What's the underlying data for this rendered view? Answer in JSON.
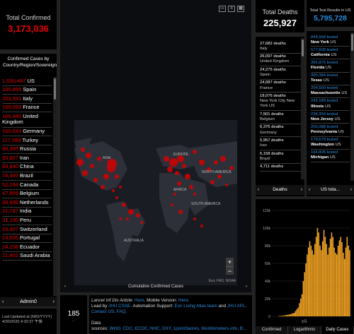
{
  "total_confirmed": {
    "label": "Total Confirmed",
    "value": "3,173,036"
  },
  "confirmed_list": {
    "header": "Confirmed Cases by Country/Region/Sovereignty",
    "items": [
      {
        "count": "1,030,487",
        "name": "US"
      },
      {
        "count": "236,899",
        "name": "Spain"
      },
      {
        "count": "203,591",
        "name": "Italy"
      },
      {
        "count": "169,053",
        "name": "France"
      },
      {
        "count": "166,440",
        "name": "United Kingdom"
      },
      {
        "count": "160,943",
        "name": "Germany"
      },
      {
        "count": "117,589",
        "name": "Turkey"
      },
      {
        "count": "99,399",
        "name": "Russia"
      },
      {
        "count": "93,657",
        "name": "Iran"
      },
      {
        "count": "83,940",
        "name": "China"
      },
      {
        "count": "74,493",
        "name": "Brazil"
      },
      {
        "count": "52,164",
        "name": "Canada"
      },
      {
        "count": "47,859",
        "name": "Belgium"
      },
      {
        "count": "38,998",
        "name": "Netherlands"
      },
      {
        "count": "31,787",
        "name": "India"
      },
      {
        "count": "31,190",
        "name": "Peru"
      },
      {
        "count": "29,407",
        "name": "Switzerland"
      },
      {
        "count": "24,505",
        "name": "Portugal"
      },
      {
        "count": "24,258",
        "name": "Ecuador"
      },
      {
        "count": "21,402",
        "name": "Saudi Arabia"
      }
    ],
    "tab_label": "Admin0"
  },
  "last_updated": {
    "label": "Last Updated at (M/D/YYYY)",
    "value": "4/30/2020 4:32:27 午後"
  },
  "map": {
    "caption": "Cumulative Confirmed Cases",
    "attribution": "Esri, FAO, NOAA",
    "labels": [
      "ASIA",
      "EUROPE",
      "AFRICA",
      "AUSTRALIA",
      "NORTH AMERICA",
      "SOUTH AMERICA"
    ],
    "zoom_in": "+",
    "zoom_out": "−"
  },
  "countries_count": "185",
  "info": {
    "line1_prefix": "Lancet Inf Dis Article: ",
    "line1_link": "Here",
    "line1_mid": ". Mobile Version: ",
    "line1_link2": "Here",
    "line2_prefix": "Lead by ",
    "line2_link": "JHU CSSE",
    "line2_mid": ". Automation Support: ",
    "line2_link2": "Esri Living Atlas team",
    "line2_and": " and ",
    "line2_link3": "JHU APL",
    "line2_contact": "Contact US",
    "line2_faq": "FAQ",
    "data_label": "Data",
    "sources_prefix": "sources: ",
    "sources": "WHO, CDC, ECDC, NHC, DXY, 1point3acres, Worldometers.info, B..."
  },
  "deaths": {
    "label": "Total Deaths",
    "value": "225,927",
    "items": [
      {
        "count": "27,682 deaths",
        "name": "Italy"
      },
      {
        "count": "26,097 deaths",
        "name": "United Kingdom"
      },
      {
        "count": "24,275 deaths",
        "name": "Spain"
      },
      {
        "count": "24,087 deaths",
        "name": "France"
      },
      {
        "count": "18,076 deaths",
        "name": "New York City New York US"
      },
      {
        "count": "7,501 deaths",
        "name": "Belgium"
      },
      {
        "count": "6,376 deaths",
        "name": "Germany"
      },
      {
        "count": "5,957 deaths",
        "name": "Iran"
      },
      {
        "count": "5,158 deaths",
        "name": "Brazil"
      },
      {
        "count": "4,711 deaths",
        "name": ""
      }
    ],
    "tab_label": "Deaths"
  },
  "tested": {
    "label": "Total Test Results in US",
    "value": "5,795,728",
    "items": [
      {
        "count": "844,994 tested",
        "state": "New York",
        "country": "US"
      },
      {
        "count": "577,608 tested",
        "state": "California",
        "country": "US"
      },
      {
        "count": "366,875 tested",
        "state": "Florida",
        "country": "US"
      },
      {
        "count": "300,384 tested",
        "state": "Texas",
        "country": "US"
      },
      {
        "count": "254,500 tested",
        "state": "Massachusetts",
        "country": "US"
      },
      {
        "count": "242,189 tested",
        "state": "Illinois",
        "country": "US"
      },
      {
        "count": "234,359 tested",
        "state": "New Jersey",
        "country": "US"
      },
      {
        "count": "209,088 tested",
        "state": "Pennsylvania",
        "country": "US"
      },
      {
        "count": "179,679 tested",
        "state": "Washington",
        "country": "US"
      },
      {
        "count": "164,805 tested",
        "state": "Michigan",
        "country": "US"
      }
    ],
    "tab_label": "US tota..."
  },
  "chart_data": {
    "type": "bar",
    "title": "",
    "xlabel": "",
    "ylabel": "",
    "y_ticks": [
      "0",
      "20k",
      "40k",
      "60k",
      "80k",
      "100k",
      "120k"
    ],
    "ylim": [
      0,
      120000
    ],
    "x_tick": "3月",
    "color": "#f5a623",
    "values": [
      400,
      500,
      600,
      800,
      1000,
      1200,
      1500,
      1800,
      2000,
      2500,
      3000,
      3500,
      4000,
      6000,
      8000,
      10000,
      15000,
      20000,
      25000,
      40000,
      50000,
      60000,
      70000,
      78000,
      85000,
      80000,
      75000,
      70000,
      82000,
      90000,
      100000,
      95000,
      80000,
      75000,
      85000,
      98000,
      90000,
      82000,
      70000,
      78000,
      88000,
      95000,
      90000,
      78000,
      72000,
      70000,
      80000,
      86000,
      90000,
      84000,
      72000,
      65000,
      78000,
      90000,
      80000,
      75000
    ]
  },
  "chart_tabs": [
    "Confirmed",
    "Logarithmic",
    "Daily Cases"
  ],
  "colors": {
    "confirmed": "#e60000",
    "tested": "#2b8de0",
    "chart_bar": "#f5a623"
  }
}
